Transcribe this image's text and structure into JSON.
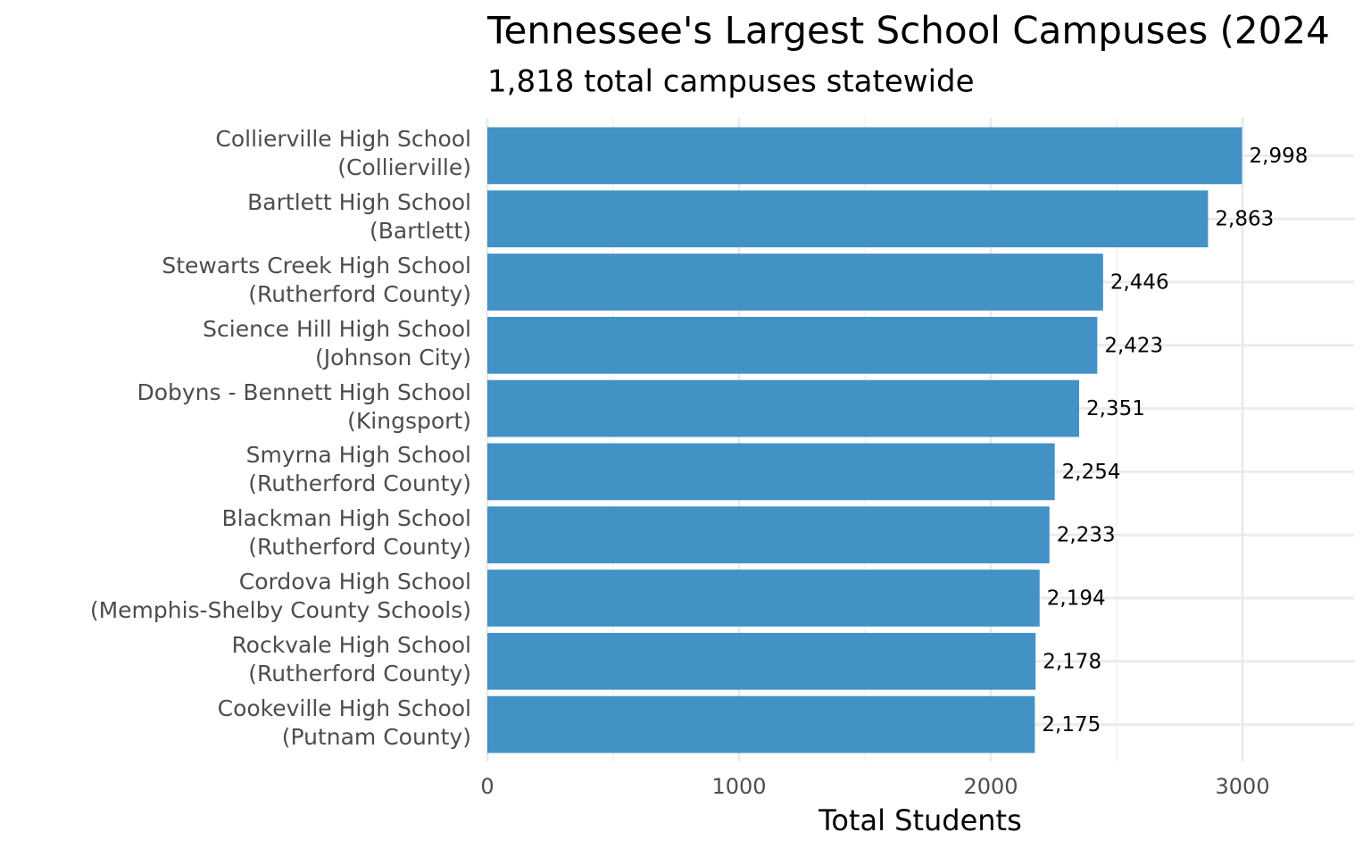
{
  "chart_data": {
    "type": "bar",
    "orientation": "horizontal",
    "title": "Tennessee's Largest School Campuses (2024",
    "subtitle": "1,818 total campuses statewide",
    "x_label": "Total Students",
    "categories": [
      "Collierville High School\n(Collierville)",
      "Bartlett High School\n(Bartlett)",
      "Stewarts Creek High School\n(Rutherford County)",
      "Science Hill High School\n(Johnson City)",
      "Dobyns - Bennett High School\n(Kingsport)",
      "Smyrna High School\n(Rutherford County)",
      "Blackman High School\n(Rutherford County)",
      "Cordova High School\n(Memphis-Shelby County Schools)",
      "Rockvale High School\n(Rutherford County)",
      "Cookeville High School\n(Putnam County)"
    ],
    "values": [
      2998,
      2863,
      2446,
      2423,
      2351,
      2254,
      2233,
      2194,
      2178,
      2175
    ],
    "value_labels": [
      "2,998",
      "2,863",
      "2,446",
      "2,423",
      "2,351",
      "2,254",
      "2,233",
      "2,194",
      "2,178",
      "2,175"
    ],
    "color": "#4292c6",
    "xlim": [
      0,
      3443
    ],
    "xticks": [
      0,
      1000,
      2000,
      3000
    ],
    "xminor": [
      500,
      1500,
      2500
    ],
    "grid": true
  }
}
